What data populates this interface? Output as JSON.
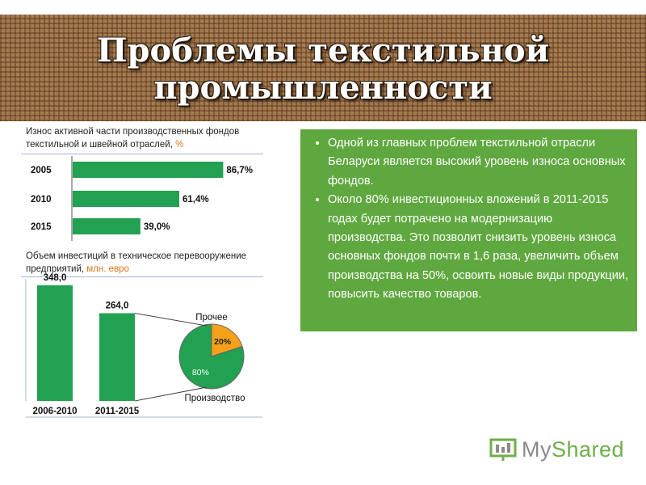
{
  "header": {
    "title": "Проблемы текстильной промышленности"
  },
  "chart_data": [
    {
      "type": "bar",
      "orientation": "horizontal",
      "title": "Износ активной части производственных фондов текстильной и швейной отраслей,",
      "unit": "%",
      "categories": [
        "2005",
        "2010",
        "2015"
      ],
      "values": [
        86.7,
        61.4,
        39.0
      ],
      "value_labels": [
        "86,7%",
        "61,4%",
        "39,0%"
      ],
      "xlim": [
        0,
        100
      ],
      "color": "#21a151"
    },
    {
      "type": "bar",
      "title": "Объем инвестиций в техническое перевооружение предприятий,",
      "unit": "млн. евро",
      "categories": [
        "2006-2010",
        "2011-2015"
      ],
      "values": [
        348.0,
        264.0
      ],
      "value_labels": [
        "348,0",
        "264,0"
      ],
      "ylim": [
        0,
        360
      ],
      "color": "#21a151"
    },
    {
      "type": "pie",
      "labels": [
        "Прочее",
        "Производство"
      ],
      "values": [
        20,
        80
      ],
      "value_labels": [
        "20%",
        "80%"
      ],
      "colors": [
        "#f7a11a",
        "#21a151"
      ]
    }
  ],
  "text_box": {
    "bullets": [
      "Одной из главных проблем текстильной отрасли Беларуси является высокий уровень износа основных фондов.",
      "Около 80% инвестиционных вложений в 2011-2015 годах будет потрачено на модернизацию производства. Это позволит снизить уровень износа основных фондов почти в 1,6 раза, увеличить объем производства на 50%, освоить новые виды продукции, повысить качество товаров."
    ]
  },
  "watermark": {
    "text_a": "My",
    "text_b": "Shared"
  }
}
